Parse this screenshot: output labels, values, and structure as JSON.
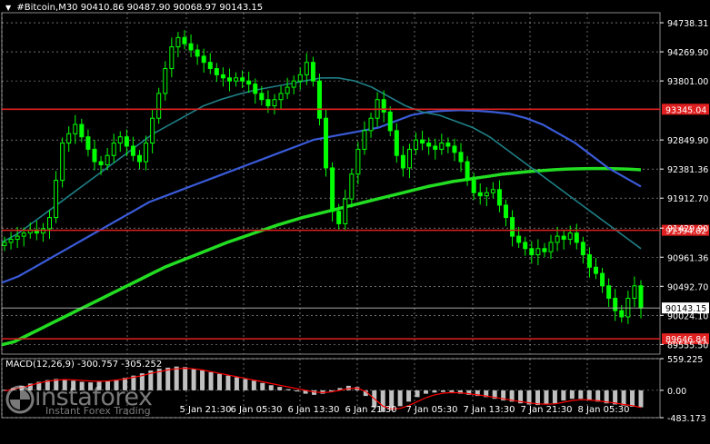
{
  "header": {
    "symbol": "#Bitcoin,M30",
    "ohlc": "90410.86 90487.90 90068.97 90143.15"
  },
  "colors": {
    "background": "#000000",
    "candle": "#00ff00",
    "ma_slow": "#22dd22",
    "ma_mid": "#3a5bd9",
    "ma_fast": "#1f7f86",
    "level_line": "#e02020",
    "macd_hist": "#c0c0c0",
    "macd_signal": "#ff0000",
    "grid": "#ffffff",
    "price_tag_bg": "#e02020",
    "current_price_bg": "#ffffff"
  },
  "chart_data": [
    {
      "type": "candlestick",
      "title": "#Bitcoin,M30",
      "ylim": [
        89400,
        94900
      ],
      "y_ticks": [
        "94738.31",
        "94269.90",
        "93801.00",
        "93345.04",
        "92849.90",
        "92381.36",
        "91912.70",
        "91429.90",
        "91394.82",
        "90961.36",
        "90492.70",
        "90143.15",
        "90024.10",
        "89646.84",
        "89555.50"
      ],
      "x_ticks": [
        "5 Jan 21:30",
        "6 Jan 05:30",
        "6 Jan 13:30",
        "6 Jan 21:30",
        "7 Jan 05:30",
        "7 Jan 13:30",
        "7 Jan 21:30",
        "8 Jan 05:30"
      ],
      "levels": [
        {
          "value": 93345.04,
          "label": "93345.04",
          "color": "#e02020"
        },
        {
          "value": 91394.82,
          "label": "91394.82",
          "color": "#e02020"
        },
        {
          "value": 89646.84,
          "label": "89646.84",
          "color": "#e02020"
        }
      ],
      "current_price": {
        "value": 90143.15,
        "label": "90143.15"
      },
      "series": [
        {
          "name": "close",
          "kind": "price",
          "values": [
            91200,
            91250,
            91300,
            91350,
            91400,
            91350,
            91420,
            91600,
            92200,
            92800,
            92950,
            93100,
            92900,
            92700,
            92500,
            92450,
            92600,
            92800,
            92900,
            92750,
            92600,
            92500,
            92800,
            93200,
            93600,
            94000,
            94350,
            94500,
            94400,
            94300,
            94200,
            94100,
            94000,
            93900,
            93850,
            93800,
            93850,
            93800,
            93750,
            93600,
            93500,
            93400,
            93500,
            93600,
            93700,
            93800,
            93900,
            94100,
            93800,
            93200,
            92400,
            91700,
            91500,
            91900,
            92300,
            92700,
            93000,
            93200,
            93500,
            93300,
            93000,
            92600,
            92400,
            92700,
            92850,
            92800,
            92750,
            92700,
            92800,
            92750,
            92650,
            92500,
            92200,
            92000,
            91950,
            92000,
            92050,
            91800,
            91600,
            91300,
            91200,
            91100,
            91000,
            91100,
            91050,
            91200,
            91300,
            91250,
            91350,
            91200,
            91000,
            90800,
            90700,
            90500,
            90300,
            90100,
            90000,
            90300,
            90500,
            90143
          ]
        },
        {
          "name": "MA slow",
          "kind": "line",
          "values": [
            89550,
            89600,
            89700,
            89800,
            89900,
            90000,
            90100,
            90200,
            90300,
            90400,
            90500,
            90600,
            90700,
            90800,
            90880,
            90960,
            91040,
            91120,
            91200,
            91270,
            91340,
            91410,
            91480,
            91540,
            91600,
            91650,
            91700,
            91750,
            91800,
            91850,
            91900,
            91950,
            92000,
            92050,
            92100,
            92140,
            92180,
            92210,
            92240,
            92270,
            92300,
            92320,
            92340,
            92355,
            92370,
            92380,
            92385,
            92390,
            92390,
            92385,
            92380,
            92370
          ]
        },
        {
          "name": "MA mid",
          "kind": "line",
          "values": [
            90550,
            90650,
            90800,
            90950,
            91100,
            91250,
            91400,
            91550,
            91700,
            91850,
            91950,
            92050,
            92150,
            92250,
            92350,
            92450,
            92550,
            92650,
            92750,
            92850,
            92900,
            92950,
            93000,
            93050,
            93150,
            93250,
            93300,
            93320,
            93330,
            93320,
            93300,
            93270,
            93200,
            93100,
            92950,
            92800,
            92600,
            92400,
            92250,
            92100
          ]
        },
        {
          "name": "MA fast",
          "kind": "line",
          "values": [
            91200,
            91350,
            91550,
            91750,
            91950,
            92150,
            92350,
            92550,
            92750,
            92950,
            93100,
            93250,
            93400,
            93500,
            93580,
            93650,
            93700,
            93750,
            93800,
            93850,
            93850,
            93800,
            93700,
            93550,
            93400,
            93300,
            93250,
            93150,
            93050,
            92900,
            92700,
            92500,
            92300,
            92100,
            91900,
            91700,
            91500,
            91300,
            91100
          ]
        }
      ]
    },
    {
      "type": "bar",
      "title": "MACD(12,26,9)",
      "values_label": "-300.757 -305.252",
      "ylim": [
        -483.173,
        559.225
      ],
      "y_ticks": [
        "559.225",
        "0.00",
        "-483.173"
      ],
      "series": [
        {
          "name": "MACD",
          "kind": "histogram",
          "values": [
            10,
            40,
            80,
            120,
            150,
            180,
            200,
            190,
            170,
            150,
            140,
            150,
            170,
            190,
            220,
            260,
            300,
            350,
            380,
            400,
            420,
            410,
            380,
            350,
            320,
            290,
            260,
            230,
            200,
            170,
            130,
            90,
            60,
            20,
            -20,
            -60,
            -80,
            -60,
            -20,
            40,
            80,
            60,
            -100,
            -300,
            -380,
            -350,
            -280,
            -200,
            -120,
            -60,
            -40,
            -30,
            -40,
            -60,
            -80,
            -100,
            -120,
            -150,
            -180,
            -200,
            -230,
            -250,
            -260,
            -250,
            -230,
            -180,
            -150,
            -150,
            -180,
            -200,
            -230,
            -250,
            -270,
            -290,
            -300
          ]
        },
        {
          "name": "Signal",
          "kind": "line",
          "values": [
            -10,
            20,
            50,
            90,
            130,
            160,
            180,
            190,
            185,
            175,
            165,
            160,
            165,
            180,
            200,
            230,
            260,
            300,
            330,
            360,
            380,
            390,
            380,
            360,
            330,
            300,
            270,
            240,
            210,
            180,
            150,
            120,
            90,
            60,
            30,
            0,
            -30,
            -40,
            -30,
            0,
            30,
            40,
            -20,
            -150,
            -280,
            -330,
            -320,
            -270,
            -200,
            -130,
            -80,
            -50,
            -40,
            -45,
            -60,
            -80,
            -100,
            -125,
            -150,
            -175,
            -200,
            -220,
            -240,
            -245,
            -240,
            -210,
            -180,
            -165,
            -170,
            -185,
            -205,
            -225,
            -250,
            -270,
            -305
          ]
        }
      ]
    }
  ],
  "watermark": {
    "brand": "instaforex",
    "tagline": "Instant Forex Trading"
  }
}
